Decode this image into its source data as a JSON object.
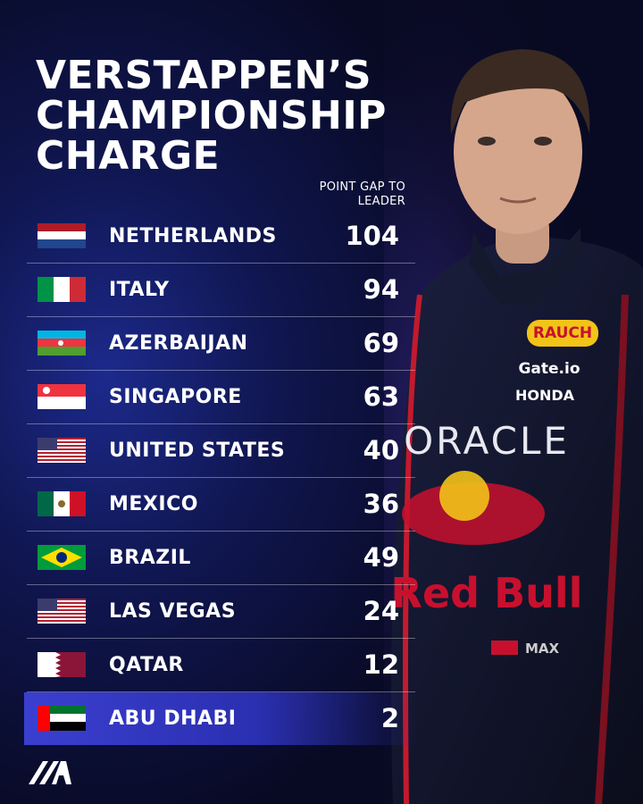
{
  "header": {
    "title": "VERSTAPPEN’S CHAMPIONSHIP CHARGE",
    "column_label": "POINT GAP TO LEADER"
  },
  "table": {
    "rows": [
      [
        "NETHERLANDS",
        104
      ],
      [
        "ITALY",
        94
      ],
      [
        "AZERBAIJAN",
        69
      ],
      [
        "SINGAPORE",
        63
      ],
      [
        "UNITED STATES",
        40
      ],
      [
        "MEXICO",
        36
      ],
      [
        "BRAZIL",
        49
      ],
      [
        "LAS VEGAS",
        24
      ],
      [
        "QATAR",
        12
      ],
      [
        "ABU DHABI",
        2
      ]
    ]
  },
  "photo": {
    "sponsors": [
      "RAUCH",
      "Gate.io",
      "HONDA",
      "ORACLE",
      "Red Bull",
      "MAX"
    ]
  }
}
